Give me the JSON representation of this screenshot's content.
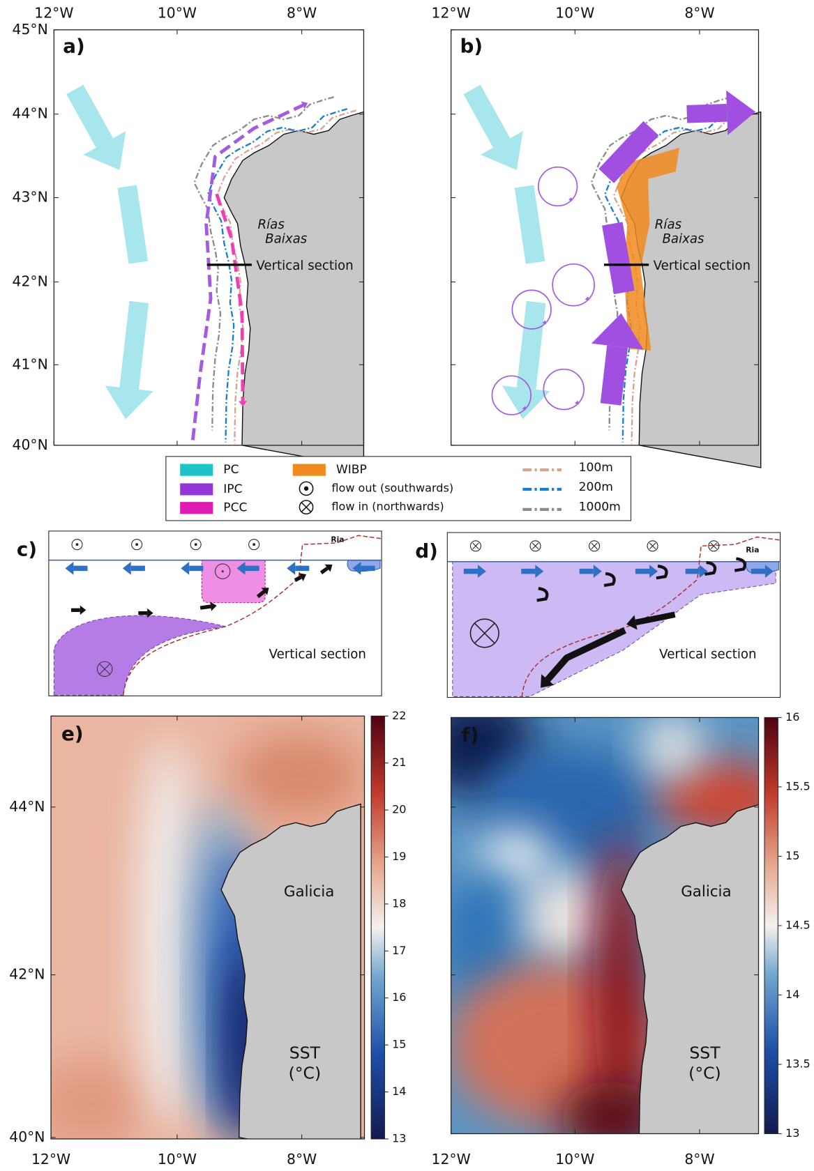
{
  "panel_labels": [
    "a)",
    "b)",
    "c)",
    "d)",
    "e)",
    "f)"
  ],
  "lon_labels": [
    "12°W",
    "10°W",
    "8°W"
  ],
  "lat_labels": [
    "45°N",
    "44°N",
    "43°N",
    "42°N",
    "41°N",
    "40°N"
  ],
  "place_labels": {
    "rias_1": "Rías",
    "rias_2": "Baixas",
    "vertical_section": "Vertical section",
    "ria": "Ria",
    "galicia": "Galicia",
    "sst_1": "SST",
    "sst_2": "(°C)"
  },
  "legend": [
    {
      "label": "PC",
      "color": "#1cc4c8"
    },
    {
      "label": "IPC",
      "color": "#9437d8"
    },
    {
      "label": "PCC",
      "color": "#e01ab0"
    },
    {
      "label": "WIBP",
      "color": "#f08a1e"
    },
    {
      "label": "flow out (southwards)"
    },
    {
      "label": "flow in (northwards)"
    },
    {
      "label": "100m",
      "color": "#d5a493"
    },
    {
      "label": "200m",
      "color": "#1a7fd0"
    },
    {
      "label": "1000m",
      "color": "#8c8c8c"
    }
  ],
  "colorbars": [
    {
      "range": [
        13,
        22
      ],
      "ticks": [
        13,
        14,
        15,
        16,
        17,
        18,
        19,
        20,
        21,
        22
      ]
    },
    {
      "range": [
        13,
        16
      ],
      "ticks": [
        13,
        13.5,
        14,
        14.5,
        15,
        15.5,
        16
      ]
    }
  ]
}
